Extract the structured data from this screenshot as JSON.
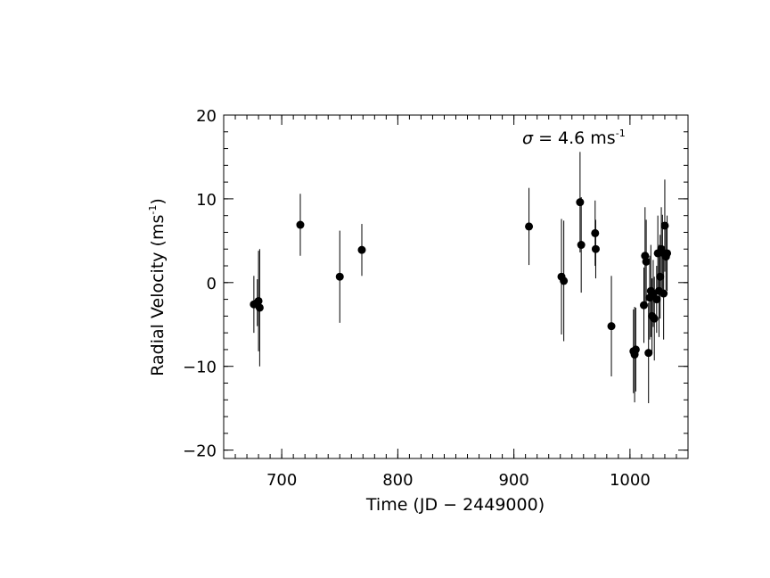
{
  "chart_data": {
    "type": "scatter",
    "title": "",
    "xlabel": "Time (JD − 2449000)",
    "ylabel_main": "Radial Velocity (ms",
    "ylabel_sup": "-1",
    "ylabel_close": ")",
    "xlim": [
      650,
      1050
    ],
    "ylim": [
      -21,
      20
    ],
    "x_major_ticks": [
      700,
      800,
      900,
      1000
    ],
    "x_tick_labels": [
      "700",
      "800",
      "900",
      "1000"
    ],
    "y_major_ticks": [
      -20,
      -10,
      0,
      10,
      20
    ],
    "y_tick_labels": [
      "−20",
      "−10",
      "0",
      "10",
      "20"
    ],
    "x_minor_step": 10,
    "y_minor_step": 2,
    "grid": false,
    "annotation": {
      "symbol": "σ",
      "text": " = 4.6 ms",
      "sup": "-1"
    },
    "series": [
      {
        "color": "#000000",
        "points": [
          {
            "x": 676,
            "y": -2.6,
            "err": 3.4
          },
          {
            "x": 679,
            "y": -2.4,
            "err": 2.8
          },
          {
            "x": 680,
            "y": -2.2,
            "err": 6.0
          },
          {
            "x": 681,
            "y": -3.0,
            "err": 7.0
          },
          {
            "x": 716,
            "y": 6.9,
            "err": 3.7
          },
          {
            "x": 750,
            "y": 0.7,
            "err": 5.5
          },
          {
            "x": 769,
            "y": 3.9,
            "err": 3.1
          },
          {
            "x": 913,
            "y": 6.7,
            "err": 4.6
          },
          {
            "x": 941,
            "y": 0.7,
            "err": 6.9
          },
          {
            "x": 943,
            "y": 0.2,
            "err": 7.2
          },
          {
            "x": 957,
            "y": 9.6,
            "err": 6.0
          },
          {
            "x": 958,
            "y": 4.5,
            "err": 5.7
          },
          {
            "x": 970,
            "y": 5.9,
            "err": 3.9
          },
          {
            "x": 970.5,
            "y": 4.0,
            "err": 3.5
          },
          {
            "x": 984,
            "y": -5.2,
            "err": 6.0
          },
          {
            "x": 1003,
            "y": -8.2,
            "err": 5.0
          },
          {
            "x": 1004,
            "y": -8.6,
            "err": 5.7
          },
          {
            "x": 1005,
            "y": -8.0,
            "err": 5.0
          },
          {
            "x": 1012,
            "y": -2.7,
            "err": 4.5
          },
          {
            "x": 1013,
            "y": 3.2,
            "err": 5.8
          },
          {
            "x": 1014,
            "y": 2.5,
            "err": 5.0
          },
          {
            "x": 1016,
            "y": -8.4,
            "err": 6.0
          },
          {
            "x": 1017,
            "y": -1.8,
            "err": 5.0
          },
          {
            "x": 1018,
            "y": -1.0,
            "err": 5.5
          },
          {
            "x": 1019,
            "y": -4.0,
            "err": 4.5
          },
          {
            "x": 1020,
            "y": -1.3,
            "err": 4.0
          },
          {
            "x": 1021,
            "y": -4.3,
            "err": 5.0
          },
          {
            "x": 1023,
            "y": -2.0,
            "err": 4.0
          },
          {
            "x": 1024,
            "y": 3.5,
            "err": 4.5
          },
          {
            "x": 1025,
            "y": -1.0,
            "err": 5.5
          },
          {
            "x": 1026,
            "y": 0.7,
            "err": 5.0
          },
          {
            "x": 1027,
            "y": 4.0,
            "err": 5.0
          },
          {
            "x": 1028,
            "y": 3.6,
            "err": 4.5
          },
          {
            "x": 1029,
            "y": -1.3,
            "err": 5.5
          },
          {
            "x": 1030,
            "y": 6.8,
            "err": 5.5
          },
          {
            "x": 1031,
            "y": 3.1,
            "err": 4.0
          },
          {
            "x": 1032,
            "y": 3.5,
            "err": 4.5
          }
        ]
      }
    ]
  }
}
